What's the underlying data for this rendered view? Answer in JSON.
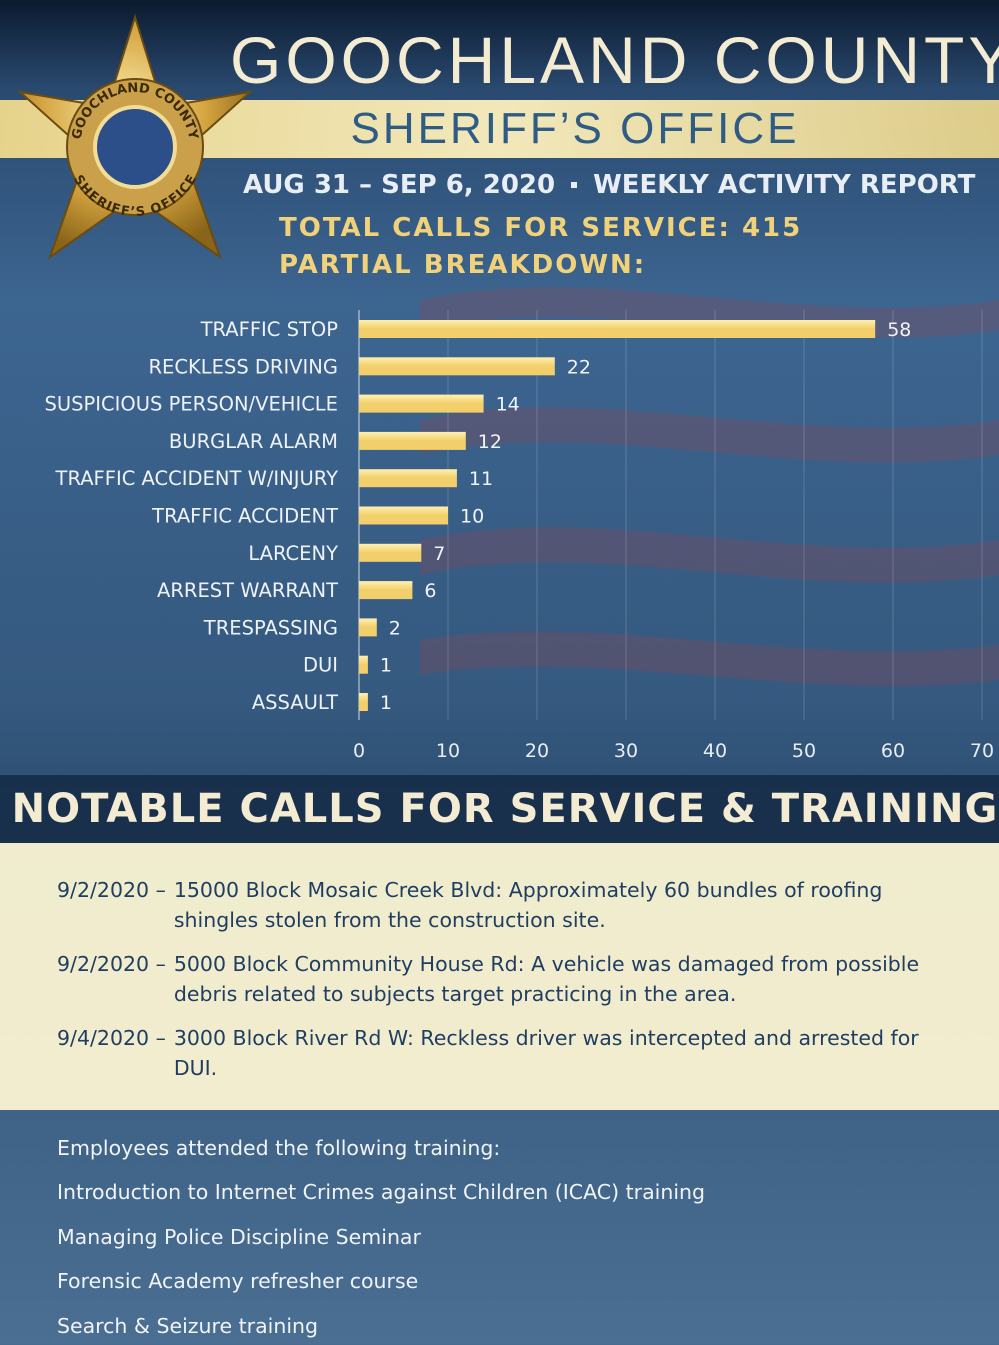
{
  "header": {
    "title": "GOOCHLAND COUNTY",
    "subtitle": "SHERIFF’S OFFICE",
    "date_range": "AUG 31 – SEP 6, 2020",
    "report": "WEEKLY ACTIVITY REPORT",
    "total_label": "TOTAL CALLS FOR SERVICE:",
    "total": 415,
    "breakdown": "PARTIAL BREAKDOWN:",
    "badge_top": "GOOCHLAND COUNTY",
    "badge_bottom": "SHERIFF’S OFFICE"
  },
  "chart_data": {
    "type": "bar",
    "orientation": "horizontal",
    "categories": [
      "TRAFFIC STOP",
      "RECKLESS DRIVING",
      "SUSPICIOUS PERSON/VEHICLE",
      "BURGLAR ALARM",
      "TRAFFIC ACCIDENT W/INJURY",
      "TRAFFIC ACCIDENT",
      "LARCENY",
      "ARREST WARRANT",
      "TRESPASSING",
      "DUI",
      "ASSAULT"
    ],
    "values": [
      58,
      22,
      14,
      12,
      11,
      10,
      7,
      6,
      2,
      1,
      1
    ],
    "color": "#f2cf6b",
    "xlim": [
      0,
      70
    ],
    "xticks": [
      0,
      10,
      20,
      30,
      40,
      50,
      60,
      70
    ],
    "grid": true
  },
  "notable": {
    "title": "NOTABLE CALLS FOR SERVICE & TRAINING",
    "items": [
      {
        "date": "9/2/2020 –",
        "text": "15000 Block Mosaic Creek Blvd: Approximately 60 bundles of roofing shingles stolen from the construction site."
      },
      {
        "date": "9/2/2020 –",
        "text": "5000 Block Community House Rd: A vehicle was damaged from possible debris related to subjects target practicing in the area."
      },
      {
        "date": "9/4/2020 –",
        "text": "3000 Block River Rd W: Reckless driver was intercepted and arrested for DUI."
      }
    ]
  },
  "training": {
    "intro": "Employees attended the following training:",
    "items": [
      "Introduction to Internet Crimes against Children (ICAC) training",
      "Managing Police Discipline Seminar",
      "Forensic Academy refresher course",
      "Search & Seizure training"
    ]
  }
}
